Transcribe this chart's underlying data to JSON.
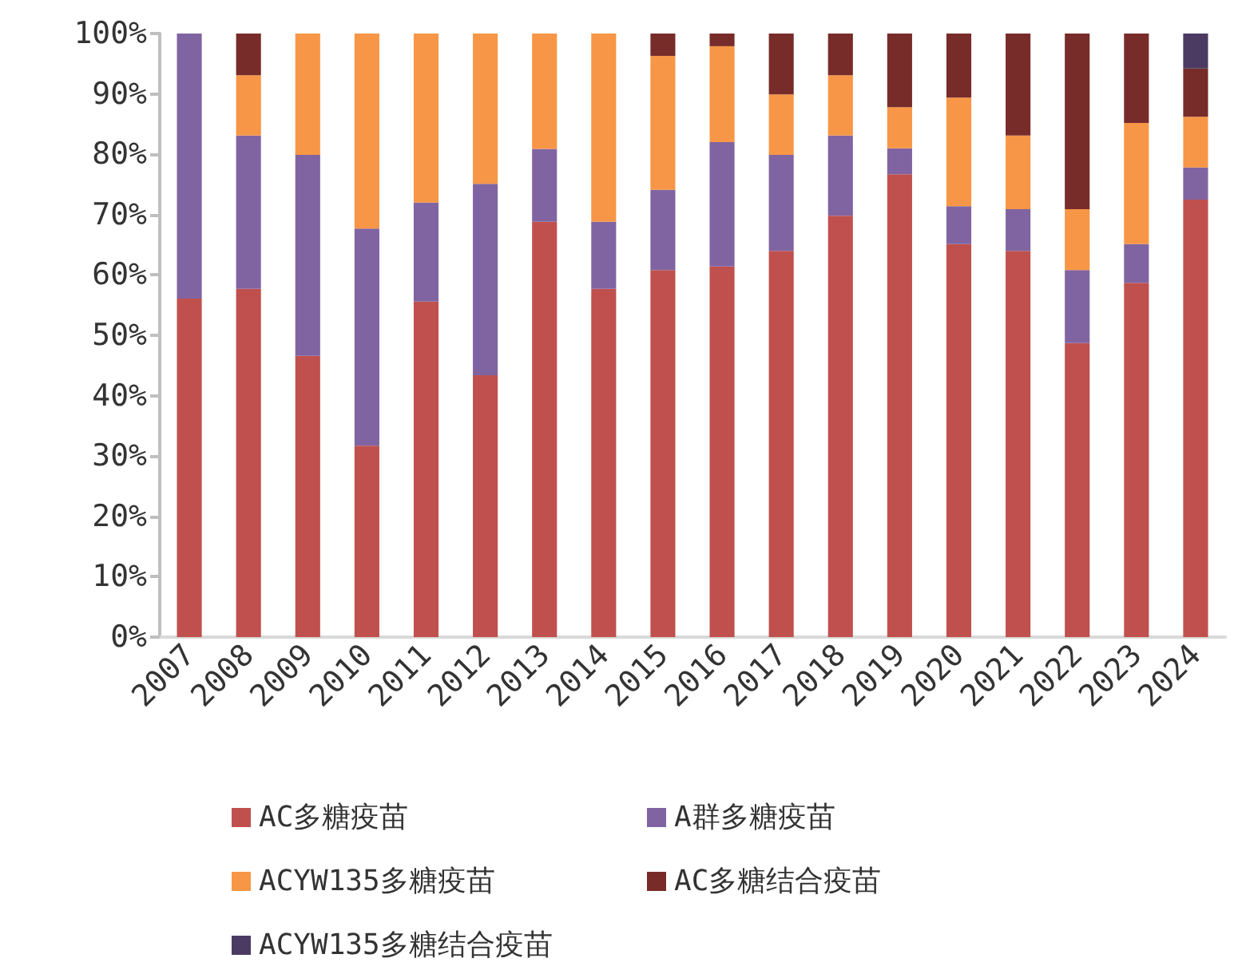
{
  "chart_data": {
    "type": "bar",
    "stacked": true,
    "categories": [
      "2007",
      "2008",
      "2009",
      "2010",
      "2011",
      "2012",
      "2013",
      "2014",
      "2015",
      "2016",
      "2017",
      "2018",
      "2019",
      "2020",
      "2021",
      "2022",
      "2023",
      "2024"
    ],
    "series": [
      {
        "name": "AC多糖疫苗",
        "color": "#c0504d",
        "values": [
          56.1,
          57.7,
          46.6,
          31.7,
          55.6,
          43.4,
          68.8,
          57.7,
          60.8,
          61.4,
          64,
          69.8,
          76.7,
          65.1,
          64,
          48.7,
          58.7,
          72.5
        ]
      },
      {
        "name": "A群多糖疫苗",
        "color": "#8064a2",
        "values": [
          43.9,
          25.4,
          33.3,
          36,
          16.4,
          31.7,
          12.1,
          11.1,
          13.3,
          20.6,
          15.9,
          13.3,
          4.3,
          6.3,
          6.9,
          12.1,
          6.4,
          5.3
        ]
      },
      {
        "name": "ACYW135多糖疫苗",
        "color": "#f79646",
        "values": [
          null,
          10,
          20.1,
          32.3,
          28,
          24.9,
          19.1,
          31.2,
          22.2,
          15.9,
          10,
          10,
          6.8,
          18,
          12.2,
          10.1,
          20.1,
          8.4
        ]
      },
      {
        "name": "AC多糖结合疫苗",
        "color": "#772c2a",
        "values": [
          null,
          6.9,
          null,
          null,
          null,
          null,
          null,
          null,
          3.7,
          2.1,
          10.1,
          6.9,
          12.2,
          10.6,
          16.9,
          29.1,
          14.8,
          8
        ]
      },
      {
        "name": "ACYW135多糖结合疫苗",
        "color": "#4b3b62",
        "values": [
          null,
          null,
          null,
          null,
          null,
          null,
          null,
          null,
          null,
          null,
          null,
          null,
          null,
          null,
          null,
          null,
          null,
          5.8
        ]
      }
    ],
    "ylim": [
      0,
      100
    ],
    "yticks": [
      {
        "value": 0,
        "label": "0%"
      },
      {
        "value": 10,
        "label": "10%"
      },
      {
        "value": 20,
        "label": "20%"
      },
      {
        "value": 30,
        "label": "30%"
      },
      {
        "value": 40,
        "label": "40%"
      },
      {
        "value": 50,
        "label": "50%"
      },
      {
        "value": 60,
        "label": "60%"
      },
      {
        "value": 70,
        "label": "70%"
      },
      {
        "value": 80,
        "label": "80%"
      },
      {
        "value": 90,
        "label": "90%"
      },
      {
        "value": 100,
        "label": "100%"
      }
    ],
    "grid": false,
    "legend": "bottom"
  }
}
